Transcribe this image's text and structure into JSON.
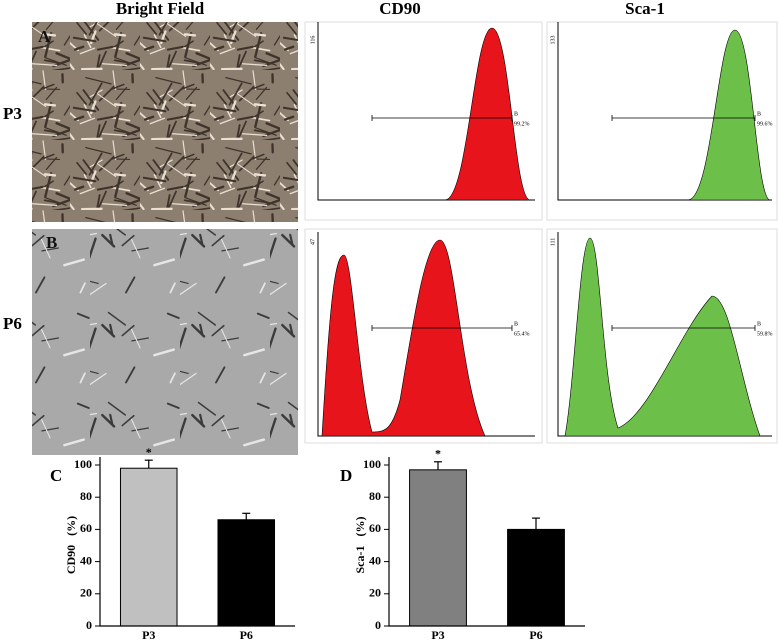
{
  "headers": [
    "Bright Field",
    "CD90",
    "Sca-1"
  ],
  "rows": [
    "P3",
    "P6"
  ],
  "panel_labels": [
    "A",
    "B"
  ],
  "histograms": [
    {
      "y_max_label": "116",
      "gate": "B",
      "percent": "99.2%",
      "color": "#e8141b"
    },
    {
      "y_max_label": "133",
      "gate": "B",
      "percent": "99.6%",
      "color": "#6cc04a"
    },
    {
      "y_max_label": "47",
      "gate": "B",
      "percent": "65.4%",
      "color": "#e8141b"
    },
    {
      "y_max_label": "111",
      "gate": "B",
      "percent": "59.8%",
      "color": "#6cc04a"
    }
  ],
  "chart_data": [
    {
      "type": "bar",
      "label": "C",
      "ylabel": "CD90   (%)",
      "categories": [
        "P3",
        "P6"
      ],
      "values": [
        98,
        66
      ],
      "errors": [
        5,
        4
      ],
      "colors": [
        "#c0c0c0",
        "#000000"
      ],
      "bar_labels": [
        "*",
        null
      ],
      "ylim": [
        0,
        100
      ],
      "yticks": [
        0,
        20,
        40,
        60,
        80,
        100
      ]
    },
    {
      "type": "bar",
      "label": "D",
      "ylabel": "Sca-1   (%)",
      "categories": [
        "P3",
        "P6"
      ],
      "values": [
        97,
        60
      ],
      "errors": [
        5,
        7
      ],
      "colors": [
        "#808080",
        "#000000"
      ],
      "bar_labels": [
        "*",
        null
      ],
      "ylim": [
        0,
        100
      ],
      "yticks": [
        0,
        20,
        40,
        60,
        80,
        100
      ]
    }
  ]
}
